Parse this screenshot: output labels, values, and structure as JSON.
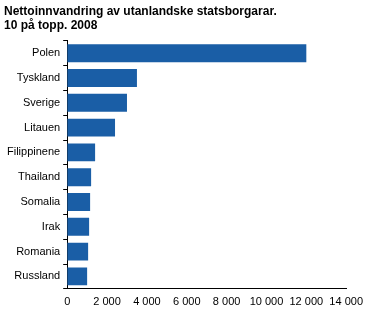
{
  "chart_data": {
    "type": "bar",
    "orientation": "horizontal",
    "title": "Nettoinnvandring av utanlandske statsborgarar.",
    "subtitle": "10 på topp. 2008",
    "categories": [
      "Polen",
      "Tyskland",
      "Sverige",
      "Litauen",
      "Filippinene",
      "Thailand",
      "Somalia",
      "Irak",
      "Romania",
      "Russland"
    ],
    "values": [
      12000,
      3500,
      3000,
      2400,
      1400,
      1200,
      1150,
      1100,
      1050,
      1000
    ],
    "color": "#1a5ea6",
    "xlim": [
      0,
      14000
    ],
    "xticks": [
      0,
      {
        "value": 2000,
        "label": "2 000"
      },
      {
        "value": 4000,
        "label": "4 000"
      },
      {
        "value": 6000,
        "label": "6 000"
      },
      {
        "value": 8000,
        "label": "8 000"
      },
      {
        "value": 10000,
        "label": "10 000"
      },
      {
        "value": 12000,
        "label": "12 000"
      },
      {
        "value": 14000,
        "label": "14 000"
      }
    ],
    "grid": false
  }
}
